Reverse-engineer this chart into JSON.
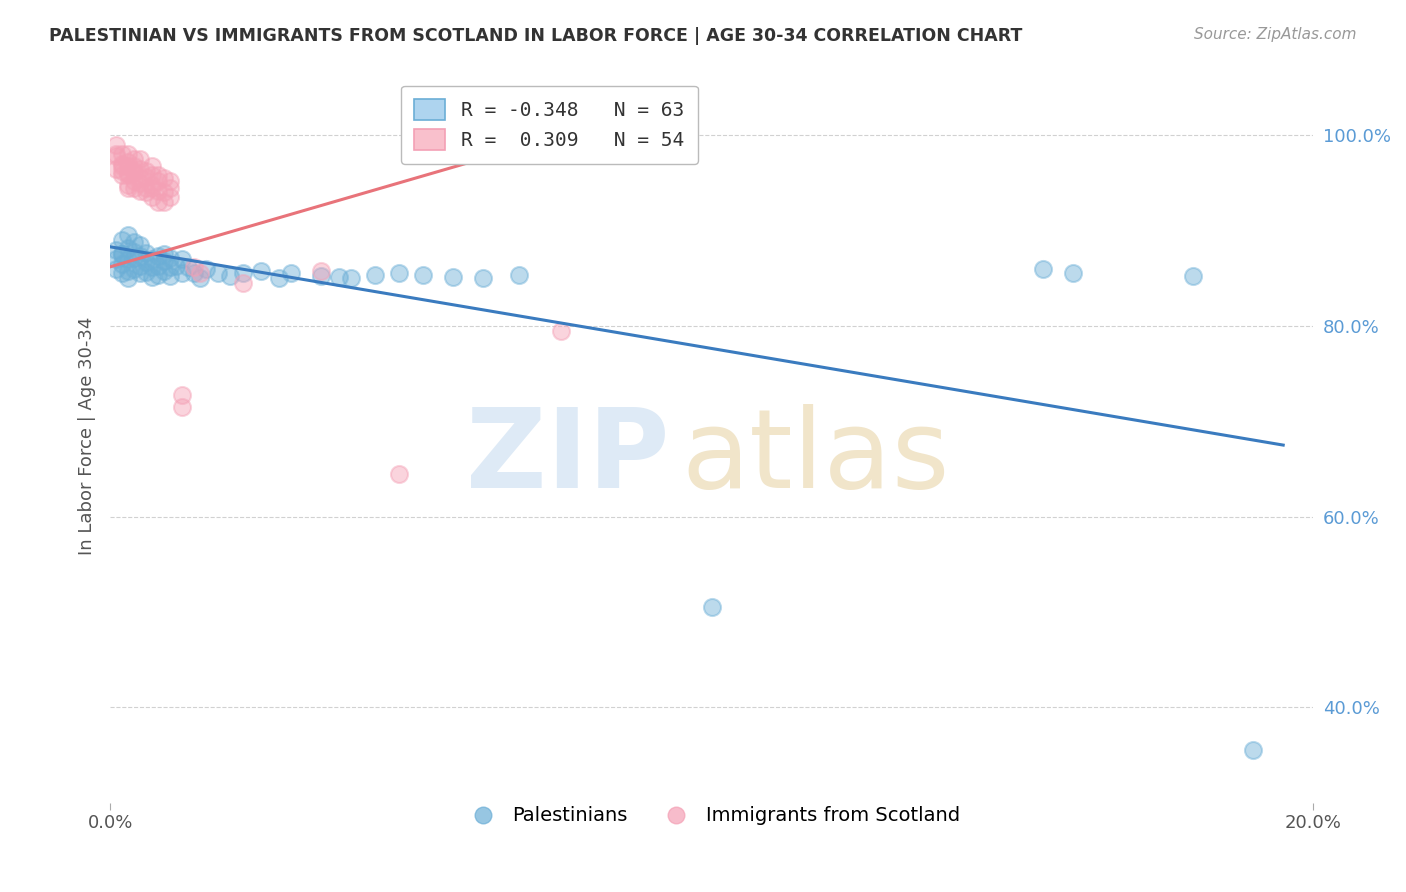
{
  "title": "PALESTINIAN VS IMMIGRANTS FROM SCOTLAND IN LABOR FORCE | AGE 30-34 CORRELATION CHART",
  "source": "Source: ZipAtlas.com",
  "ylabel": "In Labor Force | Age 30-34",
  "xlim": [
    0.0,
    0.2
  ],
  "ylim": [
    0.3,
    1.07
  ],
  "yticks": [
    0.4,
    0.6,
    0.8,
    1.0
  ],
  "yticklabels": [
    "40.0%",
    "60.0%",
    "80.0%",
    "100.0%"
  ],
  "blue_R": -0.348,
  "blue_N": 63,
  "pink_R": 0.309,
  "pink_N": 54,
  "blue_color": "#6baed6",
  "pink_color": "#f4a0b5",
  "blue_line_color": "#3a7bbf",
  "pink_line_color": "#e8737a",
  "legend_label_blue": "Palestinians",
  "legend_label_pink": "Immigrants from Scotland",
  "blue_line_x0": 0.0,
  "blue_line_y0": 0.883,
  "blue_line_x1": 0.195,
  "blue_line_y1": 0.675,
  "pink_line_x0": 0.0,
  "pink_line_y0": 0.862,
  "pink_line_x1": 0.078,
  "pink_line_y1": 1.005,
  "blue_scatter_x": [
    0.001,
    0.001,
    0.001,
    0.002,
    0.002,
    0.002,
    0.002,
    0.002,
    0.003,
    0.003,
    0.003,
    0.003,
    0.003,
    0.004,
    0.004,
    0.004,
    0.004,
    0.005,
    0.005,
    0.005,
    0.005,
    0.006,
    0.006,
    0.006,
    0.007,
    0.007,
    0.007,
    0.008,
    0.008,
    0.008,
    0.009,
    0.009,
    0.009,
    0.01,
    0.01,
    0.01,
    0.011,
    0.012,
    0.012,
    0.013,
    0.014,
    0.015,
    0.016,
    0.018,
    0.02,
    0.022,
    0.025,
    0.028,
    0.03,
    0.035,
    0.038,
    0.04,
    0.044,
    0.048,
    0.052,
    0.057,
    0.062,
    0.068,
    0.1,
    0.155,
    0.16,
    0.18,
    0.19
  ],
  "blue_scatter_y": [
    0.88,
    0.87,
    0.86,
    0.875,
    0.865,
    0.855,
    0.89,
    0.875,
    0.882,
    0.87,
    0.858,
    0.85,
    0.895,
    0.871,
    0.86,
    0.878,
    0.888,
    0.873,
    0.863,
    0.855,
    0.885,
    0.867,
    0.857,
    0.877,
    0.87,
    0.862,
    0.851,
    0.873,
    0.863,
    0.853,
    0.875,
    0.868,
    0.858,
    0.871,
    0.862,
    0.852,
    0.863,
    0.87,
    0.855,
    0.862,
    0.855,
    0.85,
    0.86,
    0.855,
    0.852,
    0.856,
    0.858,
    0.85,
    0.855,
    0.852,
    0.851,
    0.85,
    0.853,
    0.855,
    0.853,
    0.851,
    0.85,
    0.853,
    0.505,
    0.86,
    0.855,
    0.852,
    0.355
  ],
  "pink_scatter_x": [
    0.001,
    0.001,
    0.001,
    0.001,
    0.002,
    0.002,
    0.002,
    0.002,
    0.002,
    0.003,
    0.003,
    0.003,
    0.003,
    0.003,
    0.003,
    0.003,
    0.004,
    0.004,
    0.004,
    0.004,
    0.004,
    0.004,
    0.005,
    0.005,
    0.005,
    0.005,
    0.005,
    0.006,
    0.006,
    0.006,
    0.006,
    0.007,
    0.007,
    0.007,
    0.007,
    0.007,
    0.008,
    0.008,
    0.008,
    0.008,
    0.009,
    0.009,
    0.009,
    0.01,
    0.01,
    0.01,
    0.012,
    0.012,
    0.014,
    0.015,
    0.022,
    0.035,
    0.048,
    0.075
  ],
  "pink_scatter_y": [
    0.99,
    0.98,
    0.965,
    0.978,
    0.97,
    0.958,
    0.968,
    0.98,
    0.963,
    0.96,
    0.945,
    0.972,
    0.958,
    0.968,
    0.98,
    0.948,
    0.963,
    0.952,
    0.975,
    0.96,
    0.945,
    0.968,
    0.955,
    0.942,
    0.965,
    0.95,
    0.975,
    0.94,
    0.956,
    0.945,
    0.962,
    0.948,
    0.935,
    0.958,
    0.945,
    0.968,
    0.942,
    0.958,
    0.93,
    0.952,
    0.94,
    0.955,
    0.93,
    0.945,
    0.935,
    0.952,
    0.715,
    0.728,
    0.862,
    0.856,
    0.845,
    0.858,
    0.645,
    0.795
  ]
}
